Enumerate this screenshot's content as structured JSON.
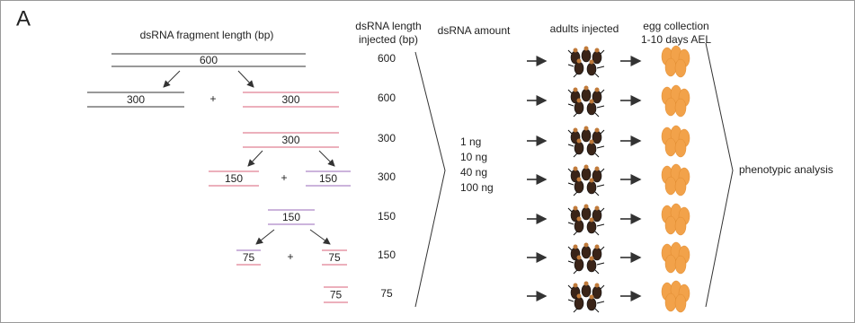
{
  "panel_label": "A",
  "headers": {
    "fragment_length": "dsRNA fragment length (bp)",
    "injected_length": [
      "dsRNA length",
      "injected (bp)"
    ],
    "amount": "dsRNA amount",
    "adults": "adults injected",
    "egg_collection": [
      "egg collection",
      "1-10 days AEL"
    ]
  },
  "fragments": [
    "600",
    "300",
    "300",
    "300",
    "150",
    "150",
    "150",
    "75",
    "75",
    "75"
  ],
  "plus": [
    "+",
    "+",
    "+"
  ],
  "injected": [
    "600",
    "600",
    "300",
    "300",
    "150",
    "150",
    "75"
  ],
  "amounts": [
    "1 ng",
    "10 ng",
    "40 ng",
    "100 ng"
  ],
  "result": "phenotypic analysis"
}
